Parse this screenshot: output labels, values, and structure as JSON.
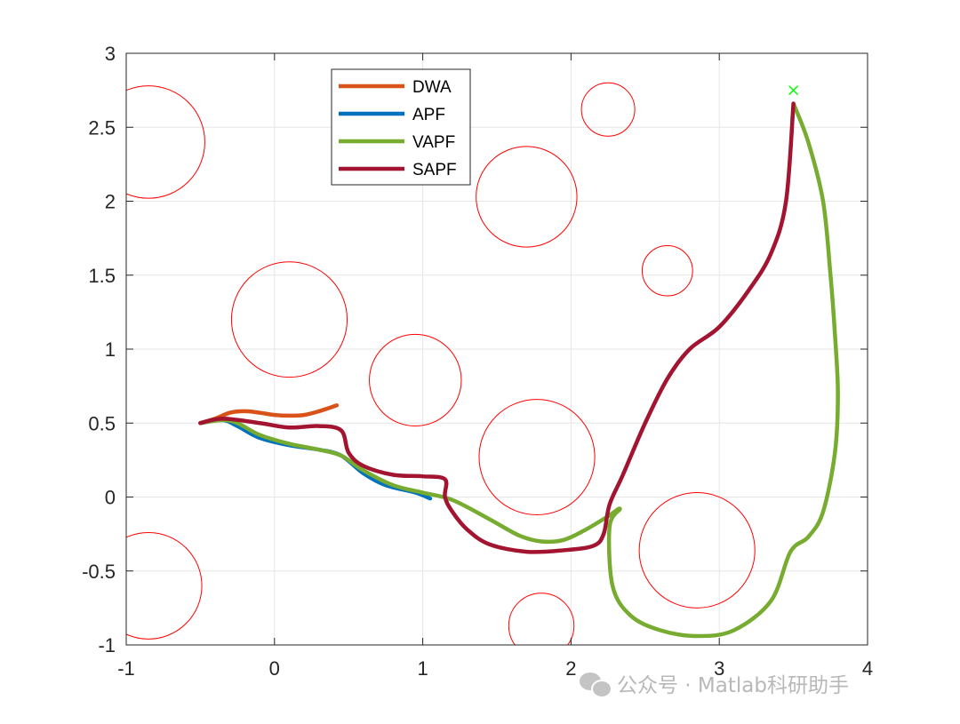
{
  "chart_data": {
    "type": "line",
    "title": "",
    "xlabel": "",
    "ylabel": "",
    "xlim": [
      -1,
      4
    ],
    "ylim": [
      -1,
      3
    ],
    "xticks": [
      -1,
      0,
      1,
      2,
      3,
      4
    ],
    "yticks": [
      -1,
      -0.5,
      0,
      0.5,
      1,
      1.5,
      2,
      2.5,
      3
    ],
    "xtick_labels": [
      "-1",
      "0",
      "1",
      "2",
      "3",
      "4"
    ],
    "ytick_labels": [
      "-1",
      "-0.5",
      "0",
      "0.5",
      "1",
      "1.5",
      "2",
      "2.5",
      "3"
    ],
    "grid": true,
    "legend_position": "top-left",
    "obstacles": [
      {
        "cx": -0.85,
        "cy": 2.4,
        "r": 0.38
      },
      {
        "cx": 0.1,
        "cy": 1.2,
        "r": 0.39
      },
      {
        "cx": 0.95,
        "cy": 0.79,
        "r": 0.31
      },
      {
        "cx": 1.7,
        "cy": 2.03,
        "r": 0.34
      },
      {
        "cx": 2.25,
        "cy": 2.62,
        "r": 0.18
      },
      {
        "cx": 2.65,
        "cy": 1.53,
        "r": 0.17
      },
      {
        "cx": 1.77,
        "cy": 0.27,
        "r": 0.39
      },
      {
        "cx": 2.85,
        "cy": -0.36,
        "r": 0.39
      },
      {
        "cx": -0.85,
        "cy": -0.6,
        "r": 0.36
      },
      {
        "cx": 1.8,
        "cy": -0.87,
        "r": 0.22
      }
    ],
    "obstacle_color": "#ff0000",
    "goal": {
      "x": 3.5,
      "y": 2.75,
      "color": "#00ff00"
    },
    "series": [
      {
        "name": "DWA",
        "color": "#d95319",
        "x": [
          -0.5,
          -0.4,
          -0.3,
          -0.2,
          -0.1,
          0.0,
          0.1,
          0.2,
          0.3,
          0.42
        ],
        "y": [
          0.5,
          0.53,
          0.57,
          0.58,
          0.57,
          0.555,
          0.55,
          0.555,
          0.58,
          0.62
        ]
      },
      {
        "name": "APF",
        "color": "#0072bd",
        "x": [
          -0.5,
          -0.35,
          -0.25,
          -0.1,
          0.1,
          0.3,
          0.45,
          0.6,
          0.75,
          0.95,
          1.05
        ],
        "y": [
          0.5,
          0.52,
          0.48,
          0.4,
          0.35,
          0.32,
          0.28,
          0.16,
          0.08,
          0.03,
          -0.01
        ]
      },
      {
        "name": "VAPF",
        "color": "#77ac30",
        "x": [
          -0.5,
          -0.35,
          -0.25,
          -0.1,
          0.1,
          0.3,
          0.45,
          0.6,
          0.8,
          1.0,
          1.2,
          1.45,
          1.65,
          1.8,
          1.95,
          2.1,
          2.25,
          2.33,
          2.26,
          2.28,
          2.4,
          2.6,
          2.85,
          3.1,
          3.35,
          3.48,
          3.6,
          3.7,
          3.78,
          3.8,
          3.78,
          3.75,
          3.7,
          3.6,
          3.5
        ],
        "y": [
          0.5,
          0.52,
          0.5,
          0.42,
          0.36,
          0.32,
          0.28,
          0.18,
          0.08,
          0.03,
          -0.02,
          -0.15,
          -0.26,
          -0.3,
          -0.29,
          -0.22,
          -0.13,
          -0.08,
          -0.2,
          -0.6,
          -0.8,
          -0.9,
          -0.94,
          -0.9,
          -0.7,
          -0.37,
          -0.27,
          -0.1,
          0.3,
          0.7,
          1.1,
          1.5,
          2.0,
          2.4,
          2.66
        ]
      },
      {
        "name": "SAPF",
        "color": "#a2142f",
        "x": [
          -0.5,
          -0.35,
          -0.1,
          0.1,
          0.3,
          0.45,
          0.5,
          0.6,
          0.8,
          1.0,
          1.15,
          1.15,
          1.2,
          1.3,
          1.45,
          1.7,
          1.95,
          2.15,
          2.22,
          2.26,
          2.35,
          2.5,
          2.65,
          2.8,
          3.0,
          3.2,
          3.35,
          3.45,
          3.5
        ],
        "y": [
          0.5,
          0.53,
          0.5,
          0.47,
          0.48,
          0.45,
          0.3,
          0.21,
          0.15,
          0.14,
          0.12,
          0.0,
          -0.1,
          -0.22,
          -0.32,
          -0.37,
          -0.36,
          -0.33,
          -0.25,
          -0.05,
          0.15,
          0.5,
          0.8,
          1.0,
          1.15,
          1.4,
          1.65,
          2.0,
          2.66
        ]
      }
    ]
  },
  "watermark": {
    "text": "公众号 · Matlab科研助手"
  }
}
